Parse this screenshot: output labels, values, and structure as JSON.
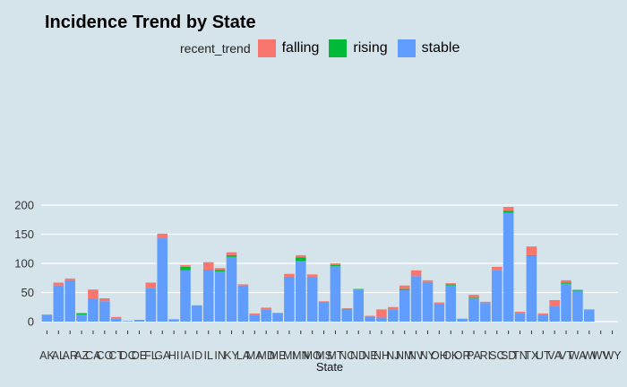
{
  "chart_data": {
    "type": "bar",
    "stacked": true,
    "title": "Incidence Trend by State",
    "xlabel": "State",
    "ylabel": "",
    "ylim": [
      0,
      210
    ],
    "yticks": [
      0,
      50,
      100,
      150,
      200
    ],
    "legend": {
      "title": "recent_trend",
      "position": "top"
    },
    "colors": {
      "falling": "#f8766d",
      "rising": "#00ba38",
      "stable": "#619cff"
    },
    "categories": [
      "AK",
      "AL",
      "AR",
      "AZ",
      "CA",
      "CO",
      "CT",
      "DC",
      "DE",
      "FL",
      "GA",
      "HI",
      "IA",
      "ID",
      "IL",
      "IN",
      "KY",
      "LA",
      "MA",
      "MD",
      "ME",
      "MI",
      "MN",
      "MO",
      "MS",
      "MT",
      "NC",
      "ND",
      "NE",
      "NH",
      "NJ",
      "NM",
      "NV",
      "NY",
      "OH",
      "OK",
      "OR",
      "PA",
      "RI",
      "SC",
      "SD",
      "TN",
      "TX",
      "UT",
      "VA",
      "VT",
      "WA",
      "WI",
      "WV",
      "WY"
    ],
    "series": [
      {
        "name": "stable",
        "values": [
          12,
          62,
          71,
          12,
          40,
          35,
          5,
          1,
          3,
          58,
          143,
          4,
          88,
          28,
          88,
          86,
          111,
          62,
          12,
          21,
          15,
          77,
          104,
          77,
          34,
          95,
          21,
          55,
          9,
          7,
          21,
          54,
          78,
          68,
          31,
          62,
          5,
          40,
          32,
          88,
          187,
          15,
          113,
          12,
          26,
          65,
          53,
          20,
          0,
          0
        ]
      },
      {
        "name": "rising",
        "values": [
          0,
          0,
          0,
          2,
          0,
          0,
          0,
          0,
          0,
          0,
          0,
          0,
          6,
          0,
          1,
          3,
          3,
          0,
          0,
          0,
          0,
          0,
          6,
          0,
          0,
          2,
          1,
          1,
          0,
          0,
          0,
          2,
          0,
          0,
          0,
          2,
          0,
          1,
          0,
          0,
          3,
          0,
          1,
          0,
          0,
          2,
          1,
          0,
          0,
          0
        ]
      },
      {
        "name": "falling",
        "values": [
          0,
          5,
          3,
          1,
          15,
          5,
          3,
          0,
          0,
          9,
          8,
          0,
          3,
          0,
          13,
          3,
          5,
          2,
          2,
          3,
          0,
          5,
          4,
          4,
          1,
          3,
          1,
          0,
          1,
          14,
          4,
          6,
          10,
          3,
          2,
          2,
          0,
          5,
          2,
          6,
          7,
          2,
          15,
          2,
          11,
          4,
          1,
          1,
          0,
          0
        ]
      }
    ]
  }
}
